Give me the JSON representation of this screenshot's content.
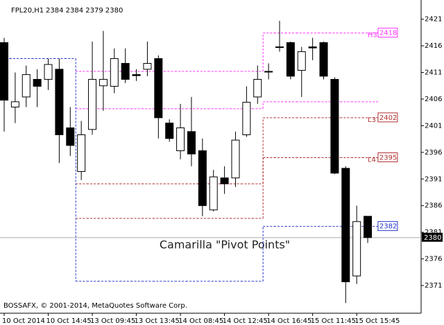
{
  "chart_data": {
    "type": "candlestick",
    "symbol": "FPL20,H1",
    "quote": "2384 2384 2379 2380",
    "annotation": "Camarilla \"Pivot Points\"",
    "footer": "BOSSAFX, © 2001-2014, MetaQuotes Software Corp.",
    "categories": [
      "10 Oct 2014",
      null,
      null,
      null,
      "10 Oct 14:45",
      null,
      null,
      null,
      "13 Oct 09:45",
      null,
      null,
      null,
      "13 Oct 13:45",
      null,
      null,
      null,
      "14 Oct 08:45",
      null,
      null,
      null,
      "14 Oct 12:45",
      null,
      null,
      null,
      "14 Oct 16:45",
      null,
      null,
      null,
      "15 Oct 11:45",
      null,
      null,
      null,
      "15 Oct 15:45",
      null
    ],
    "open": [
      2416.6,
      2404.5,
      2406.4,
      2409.7,
      2409.7,
      2411.6,
      2400.6,
      2392.4,
      2400.3,
      2408.5,
      2408.4,
      2412.7,
      2410.6,
      2411.6,
      2413.6,
      2401.5,
      2396.3,
      2399.9,
      2396.3,
      2385.2,
      2391.2,
      2391.2,
      2399.3,
      2406.4,
      2411.2,
      2415.8,
      2416.6,
      2411.4,
      2415.8,
      2416.6,
      2409.7,
      2393,
      2372.8,
      2384
    ],
    "high": [
      2417.5,
      2411,
      2412.3,
      2411.6,
      2413.6,
      2413.6,
      2404.5,
      2401.9,
      2416.8,
      2418.8,
      2415.5,
      2415.5,
      2411.6,
      2416.8,
      2414.2,
      2402.2,
      2405.1,
      2406.4,
      2398.6,
      2392.7,
      2393.4,
      2399.9,
      2408.4,
      2412.3,
      2412.7,
      2420.7,
      2416.8,
      2415.8,
      2417.5,
      2416.8,
      2410.1,
      2393.4,
      2386,
      2384
    ],
    "low": [
      2399.9,
      2401.5,
      2404.5,
      2404.5,
      2407.7,
      2394,
      2395.3,
      2390.8,
      2399.3,
      2403.8,
      2407.1,
      2409,
      2409.4,
      2410.3,
      2398.6,
      2398,
      2394.7,
      2393.4,
      2384,
      2384.9,
      2388.2,
      2389.5,
      2398.9,
      2405.1,
      2409.7,
      2414.9,
      2409.7,
      2406.4,
      2413.3,
      2409.7,
      2391.9,
      2367.7,
      2371.3,
      2379
    ],
    "close": [
      2405.8,
      2405.5,
      2410.6,
      2408.4,
      2412.5,
      2399.3,
      2397.3,
      2399.3,
      2409.7,
      2409.7,
      2413.6,
      2409.7,
      2410.4,
      2412.7,
      2402.5,
      2398.6,
      2400.6,
      2395.7,
      2386,
      2391.4,
      2390.1,
      2398.3,
      2405.4,
      2409.7,
      2411.2,
      2415.8,
      2410.3,
      2414.9,
      2415.6,
      2410.3,
      2392.1,
      2371.7,
      2383,
      2380
    ],
    "up_color": "#ffffff",
    "down_color": "#000000",
    "series": [
      {
        "name": "H3",
        "color": "#ff33ff",
        "level_label": 2418,
        "values": [
          null,
          null,
          null,
          null,
          null,
          null,
          null,
          2411.2,
          2411.2,
          2411.2,
          2411.2,
          2411.2,
          2411.2,
          2411.2,
          2411.2,
          2411.2,
          2411.2,
          2411.2,
          2411.2,
          2411.2,
          2411.2,
          2411.2,
          2411.2,
          2411.2,
          2418.4,
          2418.4,
          2418.4,
          2418.4,
          2418.4,
          2418.4,
          2418.4,
          2418.4,
          2418.4,
          2418.4
        ]
      },
      {
        "color": "#ff33ff",
        "values": [
          null,
          null,
          null,
          null,
          null,
          null,
          null,
          2404.2,
          2404.2,
          2404.2,
          2404.2,
          2404.2,
          2404.2,
          2404.2,
          2404.2,
          2404.2,
          2404.2,
          2404.2,
          2404.2,
          2404.2,
          2404.2,
          2404.2,
          2404.2,
          2404.2,
          2405.5,
          2405.5,
          2405.5,
          2405.5,
          2405.5,
          2405.5,
          2405.5,
          2405.5,
          2405.5,
          2405.5
        ]
      },
      {
        "name": "L3",
        "color": "#b03030",
        "level_label": 2402,
        "values": [
          null,
          null,
          null,
          null,
          null,
          null,
          null,
          2390.1,
          2390.1,
          2390.1,
          2390.1,
          2390.1,
          2390.1,
          2390.1,
          2390.1,
          2390.1,
          2390.1,
          2390.1,
          2390.1,
          2390.1,
          2390.1,
          2390.1,
          2390.1,
          2390.1,
          2402.5,
          2402.5,
          2402.5,
          2402.5,
          2402.5,
          2402.5,
          2402.5,
          2402.5,
          2402.5,
          2402.5
        ]
      },
      {
        "name": "L4",
        "color": "#b03030",
        "level_label": 2395,
        "values": [
          null,
          null,
          null,
          null,
          null,
          null,
          null,
          2383.6,
          2383.6,
          2383.6,
          2383.6,
          2383.6,
          2383.6,
          2383.6,
          2383.6,
          2383.6,
          2383.6,
          2383.6,
          2383.6,
          2383.6,
          2383.6,
          2383.6,
          2383.6,
          2383.6,
          2395,
          2395,
          2395,
          2395,
          2395,
          2395,
          2395,
          2395,
          2395,
          2395
        ]
      },
      {
        "color": "#2233cc",
        "level_label": 2382,
        "values": [
          2413.6,
          2413.6,
          2413.6,
          2413.6,
          2413.6,
          2413.6,
          2413.6,
          2371.8,
          2371.8,
          2371.8,
          2371.8,
          2371.8,
          2371.8,
          2371.8,
          2371.8,
          2371.8,
          2371.8,
          2371.8,
          2371.8,
          2371.8,
          2371.8,
          2371.8,
          2371.8,
          2371.8,
          2382.1,
          2382.1,
          2382.1,
          2382.1,
          2382.1,
          2382.1,
          2382.1,
          2382.1,
          2382.1,
          2382.1
        ]
      }
    ],
    "current_price": 2380,
    "ylim": [
      2365.8,
      2424.6
    ],
    "yticks": [
      2421,
      2416,
      2411,
      2406,
      2401,
      2396,
      2391,
      2386,
      2381,
      2376,
      2371
    ]
  }
}
